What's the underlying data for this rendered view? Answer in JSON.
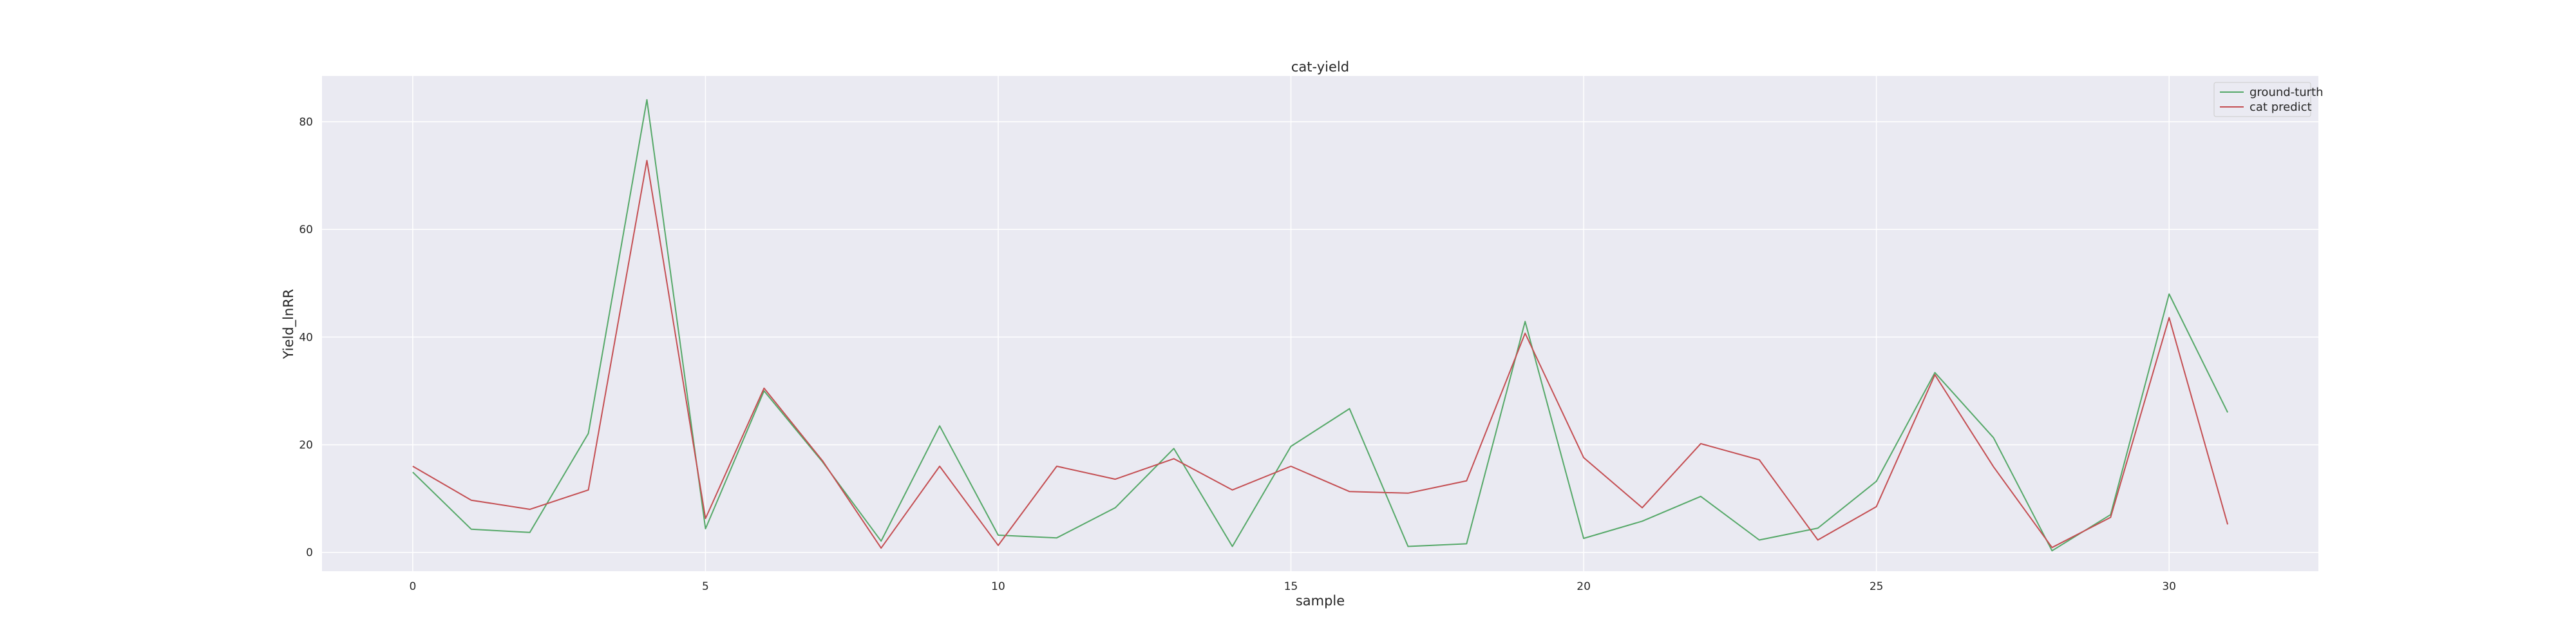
{
  "chart_data": {
    "type": "line",
    "title": "cat-yield",
    "xlabel": "sample",
    "ylabel": "Yield_lnRR",
    "xlim": [
      -1.55,
      32.55
    ],
    "ylim": [
      -3.5,
      88.5
    ],
    "xticks": [
      0,
      5,
      10,
      15,
      20,
      25,
      30
    ],
    "yticks": [
      0,
      20,
      40,
      60,
      80
    ],
    "grid": true,
    "legend_position": "top-right",
    "x": [
      0,
      1,
      2,
      3,
      4,
      5,
      6,
      7,
      8,
      9,
      10,
      11,
      12,
      13,
      14,
      15,
      16,
      17,
      18,
      19,
      20,
      21,
      22,
      23,
      24,
      25,
      26,
      27,
      28,
      29,
      30,
      31
    ],
    "series": [
      {
        "name": "ground-turth",
        "color": "#55a868",
        "values": [
          14.9,
          4.3,
          3.7,
          22.1,
          84.1,
          4.4,
          30.0,
          16.8,
          2.1,
          23.5,
          3.2,
          2.7,
          8.3,
          19.3,
          1.1,
          19.7,
          26.7,
          1.1,
          1.6,
          42.9,
          2.6,
          5.8,
          10.4,
          2.3,
          4.5,
          13.2,
          33.4,
          21.3,
          0.3,
          7.0,
          48.0,
          26.0
        ]
      },
      {
        "name": "cat predict",
        "color": "#c44e52",
        "values": [
          16.0,
          9.7,
          8.0,
          11.6,
          72.8,
          6.3,
          30.5,
          17.0,
          0.8,
          16.0,
          1.3,
          16.0,
          13.6,
          17.4,
          11.6,
          16.0,
          11.3,
          11.0,
          13.3,
          40.7,
          17.6,
          8.3,
          20.2,
          17.2,
          2.3,
          8.5,
          33.0,
          15.9,
          0.9,
          6.5,
          43.6,
          5.2
        ]
      }
    ]
  }
}
